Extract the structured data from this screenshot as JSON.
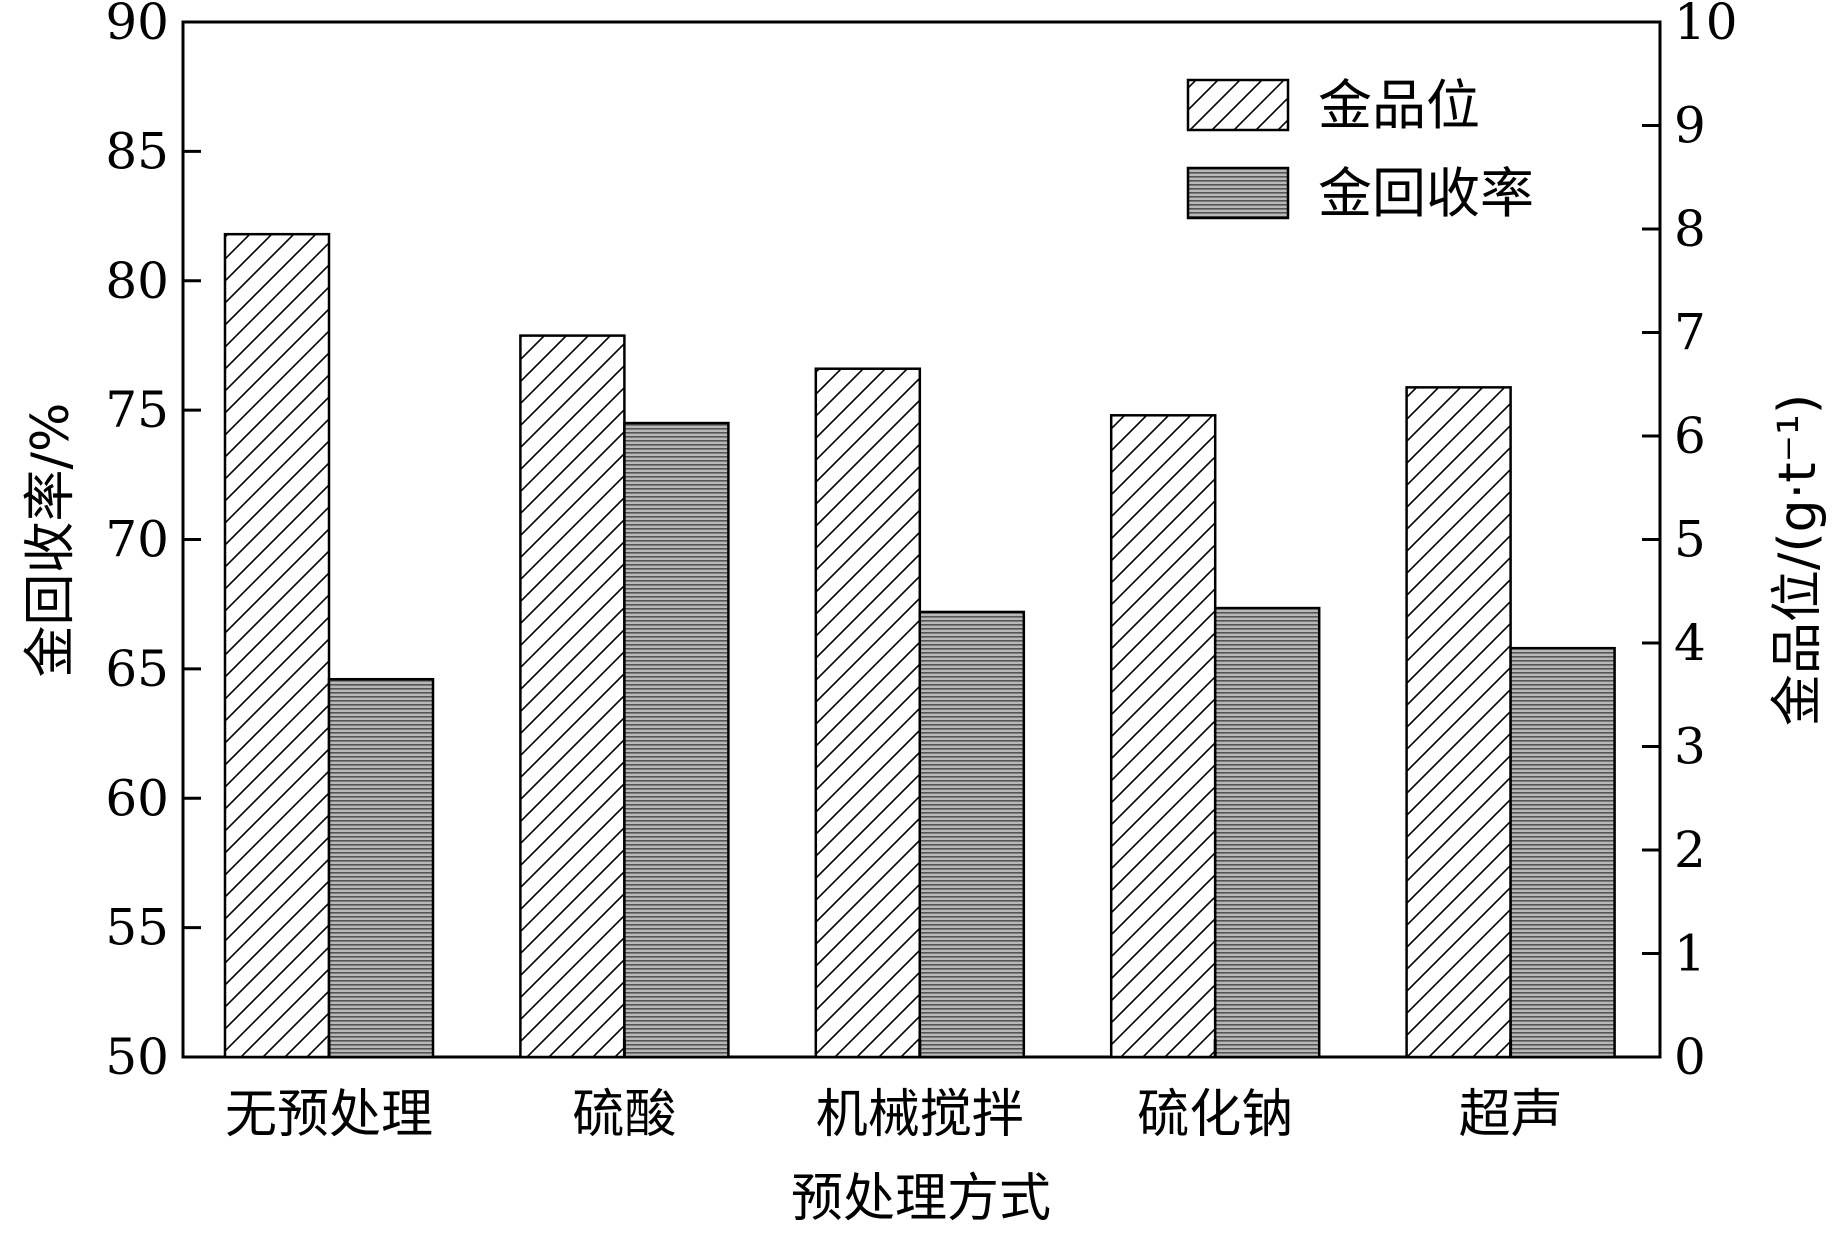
{
  "chart_data": {
    "type": "bar",
    "categories": [
      "无预处理",
      "硫酸",
      "机械搅拌",
      "硫化钠",
      "超声"
    ],
    "series": [
      {
        "name": "金品位",
        "axis": "right",
        "pattern": "diagonal-hatch",
        "values": [
          7.95,
          6.97,
          6.65,
          6.2,
          6.47
        ]
      },
      {
        "name": "金回收率",
        "axis": "left",
        "pattern": "horizontal-lines",
        "color": "#8a8a8a",
        "values": [
          64.6,
          74.5,
          67.2,
          67.35,
          65.8
        ]
      }
    ],
    "xlabel": "预处理方式",
    "ylabel": "金回收率/%",
    "ylim": [
      50,
      90
    ],
    "yticks": [
      "50",
      "55",
      "60",
      "65",
      "70",
      "75",
      "80",
      "85",
      "90"
    ],
    "y2label": "金品位/(g·t⁻¹)",
    "y2lim": [
      0,
      10
    ],
    "y2ticks": [
      "0",
      "1",
      "2",
      "3",
      "4",
      "5",
      "6",
      "7",
      "8",
      "9",
      "10"
    ],
    "legend_position": "top-right",
    "grid": false
  }
}
